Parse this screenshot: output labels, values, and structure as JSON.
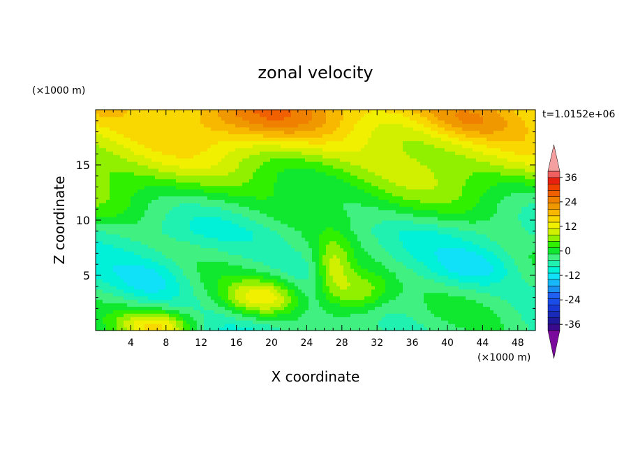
{
  "chart_data": {
    "type": "heatmap",
    "title": "zonal velocity",
    "xlabel": "X coordinate",
    "ylabel": "Z coordinate",
    "x_unit": "(×1000 m)",
    "y_unit": "(×1000 m)",
    "time_label": "t=1.0152e+06",
    "xlim": [
      0,
      50
    ],
    "ylim": [
      0,
      20
    ],
    "x_ticks": [
      4,
      8,
      12,
      16,
      20,
      24,
      28,
      32,
      36,
      40,
      44,
      48
    ],
    "y_ticks": [
      5,
      10,
      15
    ],
    "colorbar": {
      "levels": [
        -42,
        -39,
        -36,
        -33,
        -30,
        -27,
        -24,
        -21,
        -18,
        -15,
        -12,
        -9,
        -6,
        -3,
        0,
        3,
        6,
        9,
        12,
        15,
        18,
        21,
        24,
        27,
        30,
        33,
        36,
        39,
        42
      ],
      "colors": [
        "#7a0a9c",
        "#3a0a8c",
        "#20199c",
        "#1a2ab8",
        "#1838d4",
        "#1a4ce8",
        "#2060f0",
        "#1a90f0",
        "#18b8f8",
        "#10e0f8",
        "#00f0d8",
        "#20f0b0",
        "#40f080",
        "#10e830",
        "#30f000",
        "#90f000",
        "#d0f000",
        "#f0f000",
        "#f8d800",
        "#f8b800",
        "#f09800",
        "#f08000",
        "#f06000",
        "#f04000",
        "#e82010",
        "#f06060",
        "#f4a0a0"
      ],
      "tick_labels": [
        "36",
        "24",
        "12",
        "0",
        "-12",
        "-24",
        "-36"
      ],
      "tick_values": [
        36,
        24,
        12,
        0,
        -12,
        -24,
        -36
      ],
      "extend": "both"
    },
    "colormap_note": "",
    "features": [
      {
        "x": 18,
        "z": 19,
        "value": 20,
        "sx": 6,
        "sz": 1.5
      },
      {
        "x": 42,
        "z": 19,
        "value": 20,
        "sx": 4,
        "sz": 1.2
      },
      {
        "x": 6.5,
        "z": 4.5,
        "value": -12,
        "sx": 3,
        "sz": 1.4
      },
      {
        "x": 43,
        "z": 5.8,
        "value": -11,
        "sx": 3,
        "sz": 1.2
      },
      {
        "x": 19,
        "z": 3,
        "value": 9,
        "sx": 3,
        "sz": 1.2
      },
      {
        "x": 30,
        "z": 3.5,
        "value": 8,
        "sx": 2.5,
        "sz": 1.5
      },
      {
        "x": 27,
        "z": 5.5,
        "value": 6,
        "sx": 1.5,
        "sz": 2
      },
      {
        "x": 7,
        "z": 0.4,
        "value": 10,
        "sx": 3,
        "sz": 1
      },
      {
        "x": 24,
        "z": 8,
        "value": -7,
        "sx": 8,
        "sz": 2
      },
      {
        "x": 18,
        "z": 11,
        "value": -3,
        "sx": 6,
        "sz": 2
      }
    ]
  }
}
